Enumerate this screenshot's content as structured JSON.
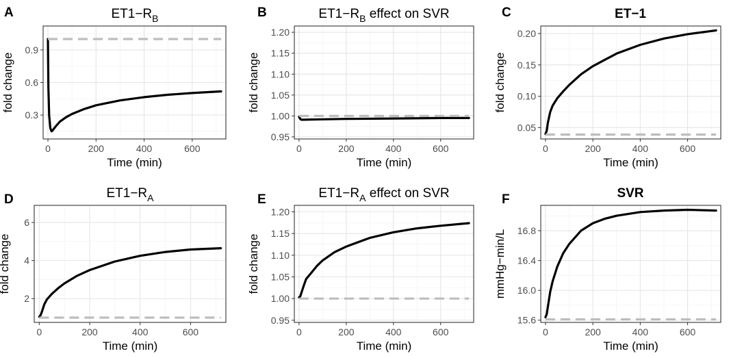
{
  "chart_data": [
    {
      "letter": "A",
      "title": "ET1−R",
      "title_sub": "B",
      "title_suffix": "",
      "bold": false,
      "type": "line",
      "xlabel": "Time (min)",
      "ylabel": "fold change",
      "xlim": [
        -20,
        740
      ],
      "ylim": [
        0.08,
        1.12
      ],
      "xticks": [
        "0",
        "200",
        "400",
        "600"
      ],
      "xtick_values": [
        0,
        200,
        400,
        600
      ],
      "yticks": [
        "0.3",
        "0.6",
        "0.9"
      ],
      "ytick_values": [
        0.3,
        0.6,
        0.9
      ],
      "series": [
        {
          "name": "model",
          "x": [
            0,
            2,
            5,
            10,
            15,
            20,
            30,
            50,
            75,
            100,
            150,
            200,
            300,
            400,
            500,
            600,
            720
          ],
          "y": [
            1.0,
            0.55,
            0.3,
            0.18,
            0.15,
            0.16,
            0.19,
            0.24,
            0.28,
            0.31,
            0.355,
            0.39,
            0.435,
            0.465,
            0.487,
            0.503,
            0.518
          ]
        },
        {
          "name": "baseline",
          "x": [
            0,
            720
          ],
          "y": [
            1.0,
            1.0
          ]
        }
      ]
    },
    {
      "letter": "B",
      "title": "ET1−R",
      "title_sub": "B",
      "title_suffix": " effect on SVR",
      "bold": false,
      "type": "line",
      "xlabel": "Time (min)",
      "ylabel": "fold change",
      "xlim": [
        -20,
        740
      ],
      "ylim": [
        0.945,
        1.215
      ],
      "xticks": [
        "0",
        "200",
        "400",
        "600"
      ],
      "xtick_values": [
        0,
        200,
        400,
        600
      ],
      "yticks": [
        "0.95",
        "1.00",
        "1.05",
        "1.10",
        "1.15",
        "1.20"
      ],
      "ytick_values": [
        0.95,
        1.0,
        1.05,
        1.1,
        1.15,
        1.2
      ],
      "series": [
        {
          "name": "model",
          "x": [
            0,
            5,
            10,
            20,
            50,
            100,
            200,
            400,
            600,
            720
          ],
          "y": [
            0.998,
            0.993,
            0.991,
            0.991,
            0.9915,
            0.992,
            0.993,
            0.994,
            0.995,
            0.995
          ]
        },
        {
          "name": "baseline",
          "x": [
            0,
            720
          ],
          "y": [
            1.0,
            1.0
          ]
        }
      ]
    },
    {
      "letter": "C",
      "title": "ET−1",
      "title_sub": "",
      "title_suffix": "",
      "bold": true,
      "type": "line",
      "xlabel": "Time (min)",
      "ylabel": "fold change",
      "xlim": [
        -20,
        740
      ],
      "ylim": [
        0.032,
        0.212
      ],
      "xticks": [
        "0",
        "200",
        "400",
        "600"
      ],
      "xtick_values": [
        0,
        200,
        400,
        600
      ],
      "yticks": [
        "0.05",
        "0.10",
        "0.15",
        "0.20"
      ],
      "ytick_values": [
        0.05,
        0.1,
        0.15,
        0.2
      ],
      "series": [
        {
          "name": "model",
          "x": [
            0,
            5,
            10,
            20,
            30,
            50,
            75,
            100,
            150,
            200,
            300,
            400,
            500,
            600,
            720
          ],
          "y": [
            0.04,
            0.045,
            0.058,
            0.075,
            0.085,
            0.097,
            0.108,
            0.118,
            0.135,
            0.148,
            0.168,
            0.182,
            0.192,
            0.199,
            0.205
          ]
        },
        {
          "name": "baseline",
          "x": [
            0,
            720
          ],
          "y": [
            0.039,
            0.039
          ]
        }
      ]
    },
    {
      "letter": "D",
      "title": "ET1−R",
      "title_sub": "A",
      "title_suffix": "",
      "bold": false,
      "type": "line",
      "xlabel": "Time (min)",
      "ylabel": "fold change",
      "xlim": [
        -20,
        740
      ],
      "ylim": [
        0.75,
        6.9
      ],
      "xticks": [
        "0",
        "200",
        "400",
        "600"
      ],
      "xtick_values": [
        0,
        200,
        400,
        600
      ],
      "yticks": [
        "2",
        "4",
        "6"
      ],
      "ytick_values": [
        2,
        4,
        6
      ],
      "series": [
        {
          "name": "model",
          "x": [
            0,
            5,
            10,
            20,
            30,
            50,
            75,
            100,
            150,
            200,
            300,
            400,
            500,
            600,
            720
          ],
          "y": [
            1.05,
            1.12,
            1.3,
            1.7,
            1.95,
            2.25,
            2.55,
            2.8,
            3.2,
            3.5,
            3.95,
            4.25,
            4.45,
            4.58,
            4.65
          ]
        },
        {
          "name": "baseline",
          "x": [
            0,
            720
          ],
          "y": [
            1.0,
            1.0
          ]
        }
      ]
    },
    {
      "letter": "E",
      "title": "ET1−R",
      "title_sub": "A",
      "title_suffix": " effect on SVR",
      "bold": false,
      "type": "line",
      "xlabel": "Time (min)",
      "ylabel": "fold change",
      "xlim": [
        -20,
        740
      ],
      "ylim": [
        0.945,
        1.215
      ],
      "xticks": [
        "0",
        "200",
        "400",
        "600"
      ],
      "xtick_values": [
        0,
        200,
        400,
        600
      ],
      "yticks": [
        "0.95",
        "1.00",
        "1.05",
        "1.10",
        "1.15",
        "1.20"
      ],
      "ytick_values": [
        0.95,
        1.0,
        1.05,
        1.1,
        1.15,
        1.2
      ],
      "series": [
        {
          "name": "model",
          "x": [
            0,
            5,
            10,
            20,
            30,
            50,
            75,
            100,
            150,
            200,
            300,
            400,
            500,
            600,
            720
          ],
          "y": [
            1.003,
            1.005,
            1.013,
            1.03,
            1.045,
            1.058,
            1.075,
            1.088,
            1.107,
            1.12,
            1.14,
            1.153,
            1.162,
            1.168,
            1.174
          ]
        },
        {
          "name": "baseline",
          "x": [
            0,
            720
          ],
          "y": [
            1.0,
            1.0
          ]
        }
      ]
    },
    {
      "letter": "F",
      "title": "SVR",
      "title_sub": "",
      "title_suffix": "",
      "bold": true,
      "type": "line",
      "xlabel": "Time (min)",
      "ylabel": "mmHg−min/L",
      "xlim": [
        -20,
        740
      ],
      "ylim": [
        15.57,
        17.14
      ],
      "xticks": [
        "0",
        "200",
        "400",
        "600"
      ],
      "xtick_values": [
        0,
        200,
        400,
        600
      ],
      "yticks": [
        "15.6",
        "16.0",
        "16.4",
        "16.8"
      ],
      "ytick_values": [
        15.6,
        16.0,
        16.4,
        16.8
      ],
      "series": [
        {
          "name": "model",
          "x": [
            0,
            5,
            10,
            20,
            30,
            50,
            75,
            100,
            150,
            200,
            250,
            300,
            400,
            500,
            600,
            720
          ],
          "y": [
            15.64,
            15.68,
            15.78,
            15.98,
            16.12,
            16.32,
            16.5,
            16.62,
            16.8,
            16.9,
            16.96,
            17.0,
            17.05,
            17.07,
            17.08,
            17.07
          ]
        },
        {
          "name": "baseline",
          "x": [
            0,
            720
          ],
          "y": [
            15.61,
            15.61
          ]
        }
      ]
    }
  ]
}
